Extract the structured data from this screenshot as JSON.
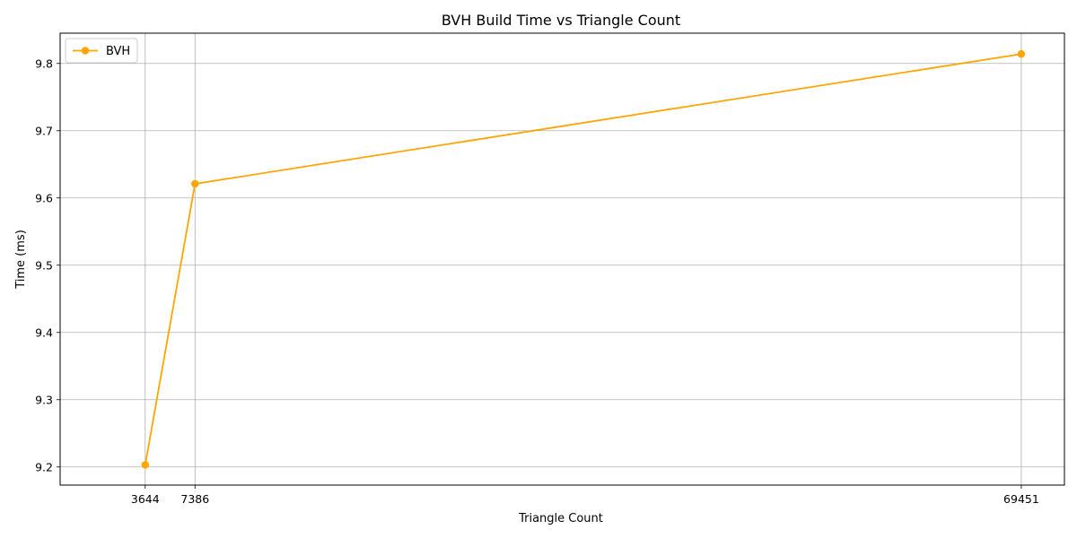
{
  "chart_data": {
    "type": "line",
    "title": "BVH Build Time vs Triangle Count",
    "xlabel": "Triangle Count",
    "ylabel": "Time (ms)",
    "x_ticks": [
      3644,
      7386,
      69451
    ],
    "y_ticks": [
      9.2,
      9.3,
      9.4,
      9.5,
      9.6,
      9.7,
      9.8
    ],
    "xlim": [
      -2746,
      72691
    ],
    "ylim": [
      9.173,
      9.845
    ],
    "grid": true,
    "legend_position": "top-left",
    "series": [
      {
        "name": "BVH",
        "color": "#ffa500",
        "marker": "circle",
        "x": [
          3644,
          7386,
          69451
        ],
        "y": [
          9.203,
          9.621,
          9.814
        ]
      }
    ]
  }
}
